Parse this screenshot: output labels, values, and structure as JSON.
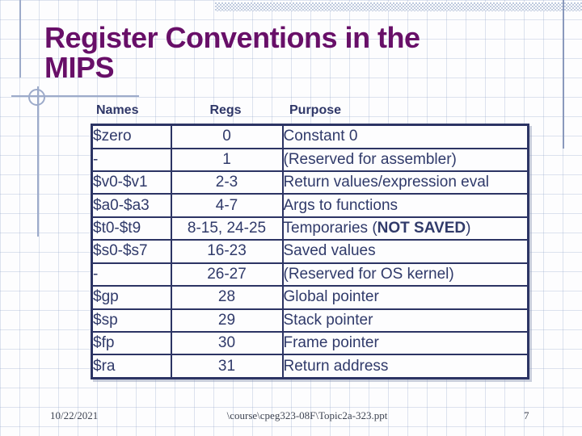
{
  "slide": {
    "title": "Register Conventions in the\nMIPS",
    "footer": {
      "date": "10/22/2021",
      "path": "\\course\\cpeg323-08F\\Topic2a-323.ppt",
      "page": "7"
    }
  },
  "table": {
    "headers": [
      "Names",
      "Regs",
      "Purpose"
    ],
    "rows": [
      {
        "name": "$zero",
        "regs": "0",
        "purpose": "Constant 0"
      },
      {
        "name": "-",
        "regs": "1",
        "purpose": "(Reserved for assembler)"
      },
      {
        "name": "$v0-$v1",
        "regs": "2-3",
        "purpose": "Return values/expression eval"
      },
      {
        "name": "$a0-$a3",
        "regs": "4-7",
        "purpose": "Args to functions"
      },
      {
        "name": "$t0-$t9",
        "regs": "8-15, 24-25",
        "purpose": "Temporaries (NOT SAVED)",
        "purpose_bold": "NOT SAVED"
      },
      {
        "name": "$s0-$s7",
        "regs": "16-23",
        "purpose": "Saved values"
      },
      {
        "name": "-",
        "regs": "26-27",
        "purpose": "(Reserved for OS kernel)"
      },
      {
        "name": "$gp",
        "regs": "28",
        "purpose": "Global pointer"
      },
      {
        "name": "$sp",
        "regs": "29",
        "purpose": "Stack pointer"
      },
      {
        "name": "$fp",
        "regs": "30",
        "purpose": "Frame pointer"
      },
      {
        "name": "$ra",
        "regs": "31",
        "purpose": "Return address"
      }
    ]
  },
  "colors": {
    "title": "#680f68",
    "table_ink": "#2c3464",
    "band": "#bfcade",
    "decoration_line": "#9dabca",
    "footer_ink": "#3e4452"
  }
}
